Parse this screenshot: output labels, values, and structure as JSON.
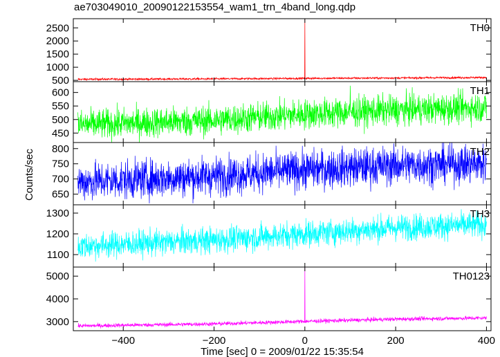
{
  "chart_data": {
    "type": "line",
    "title": "ae703049010_20090122153554_wam1_trn_4band_long.qdp",
    "xlabel": "Time [sec] 0 = 2009/01/22 15:35:54",
    "ylabel": "Counts/sec",
    "xlim": [
      -510,
      410
    ],
    "xticks": [
      -400,
      -200,
      0,
      200,
      400
    ],
    "grid": false,
    "panels": [
      {
        "name": "TH0",
        "color": "#ff0000",
        "ylim": [
          450,
          2850
        ],
        "yticks": [
          500,
          1000,
          1500,
          2000,
          2500
        ],
        "trend": [
          [
            -500,
            540
          ],
          [
            -200,
            555
          ],
          [
            0,
            575
          ],
          [
            200,
            590
          ],
          [
            400,
            610
          ]
        ],
        "noise": 20,
        "spike": [
          0,
          2850
        ]
      },
      {
        "name": "TH1",
        "color": "#00ff00",
        "ylim": [
          415,
          640
        ],
        "yticks": [
          450,
          500,
          550,
          600
        ],
        "trend": [
          [
            -500,
            480
          ],
          [
            -200,
            497
          ],
          [
            0,
            520
          ],
          [
            200,
            535
          ],
          [
            400,
            545
          ]
        ],
        "noise": 28,
        "spike": [
          100,
          625
        ]
      },
      {
        "name": "TH2",
        "color": "#0000ff",
        "ylim": [
          615,
          820
        ],
        "yticks": [
          650,
          700,
          750,
          800
        ],
        "trend": [
          [
            -500,
            690
          ],
          [
            -200,
            710
          ],
          [
            0,
            730
          ],
          [
            200,
            745
          ],
          [
            400,
            750
          ]
        ],
        "noise": 32,
        "spike": null
      },
      {
        "name": "TH3",
        "color": "#00ffff",
        "ylim": [
          1040,
          1340
        ],
        "yticks": [
          1100,
          1200,
          1300
        ],
        "trend": [
          [
            -500,
            1140
          ],
          [
            -200,
            1170
          ],
          [
            0,
            1200
          ],
          [
            200,
            1230
          ],
          [
            400,
            1245
          ]
        ],
        "noise": 32,
        "spike": null
      },
      {
        "name": "TH0123",
        "color": "#ff00ff",
        "ylim": [
          2600,
          5400
        ],
        "yticks": [
          3000,
          4000,
          5000
        ],
        "trend": [
          [
            -500,
            2810
          ],
          [
            -200,
            2900
          ],
          [
            0,
            3010
          ],
          [
            200,
            3110
          ],
          [
            400,
            3160
          ]
        ],
        "noise": 45,
        "spike": [
          0,
          5400
        ]
      }
    ]
  }
}
